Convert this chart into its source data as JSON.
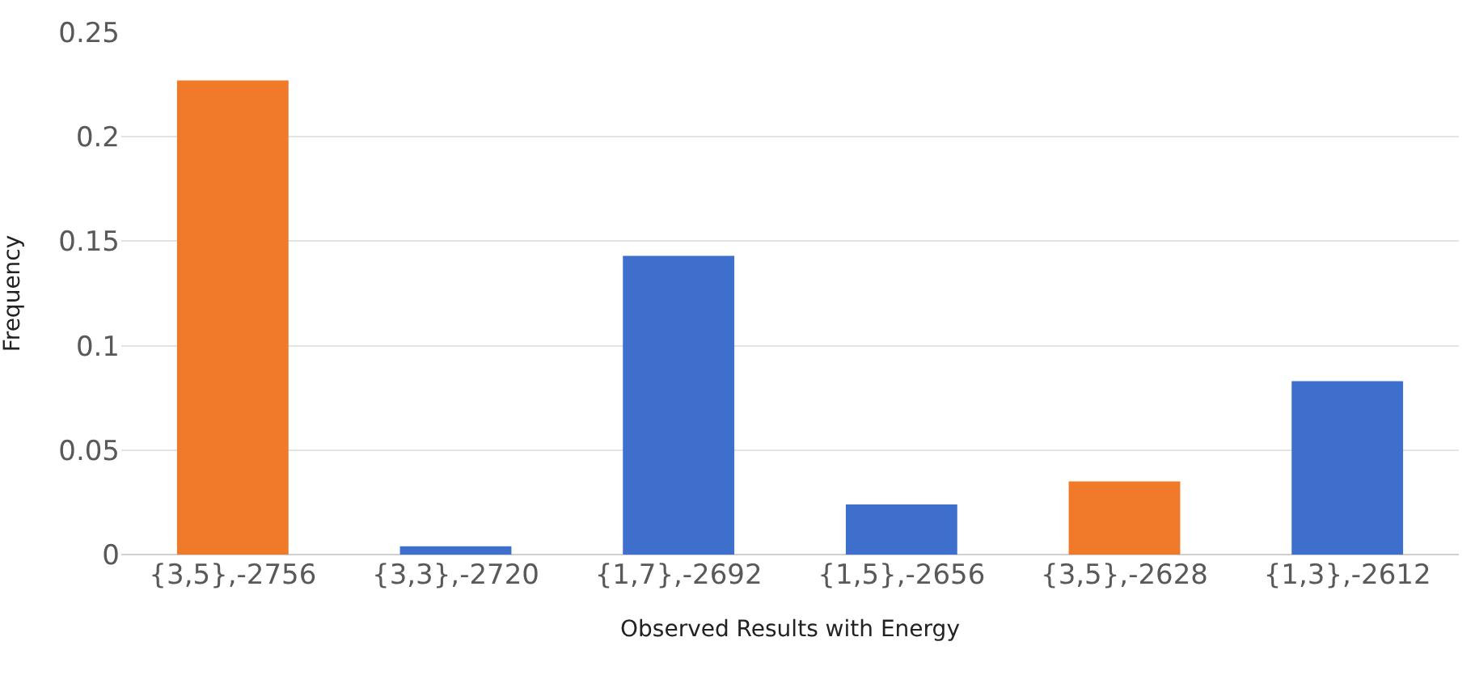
{
  "chart_data": {
    "type": "bar",
    "xlabel": "Observed Results with Energy",
    "ylabel": "Frequency",
    "categories": [
      "{3,5},-2756",
      "{3,3},-2720",
      "{1,7},-2692",
      "{1,5},-2656",
      "{3,5},-2628",
      "{1,3},-2612"
    ],
    "values": [
      0.227,
      0.004,
      0.143,
      0.024,
      0.035,
      0.083
    ],
    "colors": [
      "#f07a2a",
      "#3f6fcc",
      "#3f6fcc",
      "#3f6fcc",
      "#f07a2a",
      "#3f6fcc"
    ],
    "ylim": [
      0,
      0.25
    ],
    "yticks": [
      0,
      0.05,
      0.1,
      0.15,
      0.2,
      0.25
    ],
    "grid": "y"
  }
}
